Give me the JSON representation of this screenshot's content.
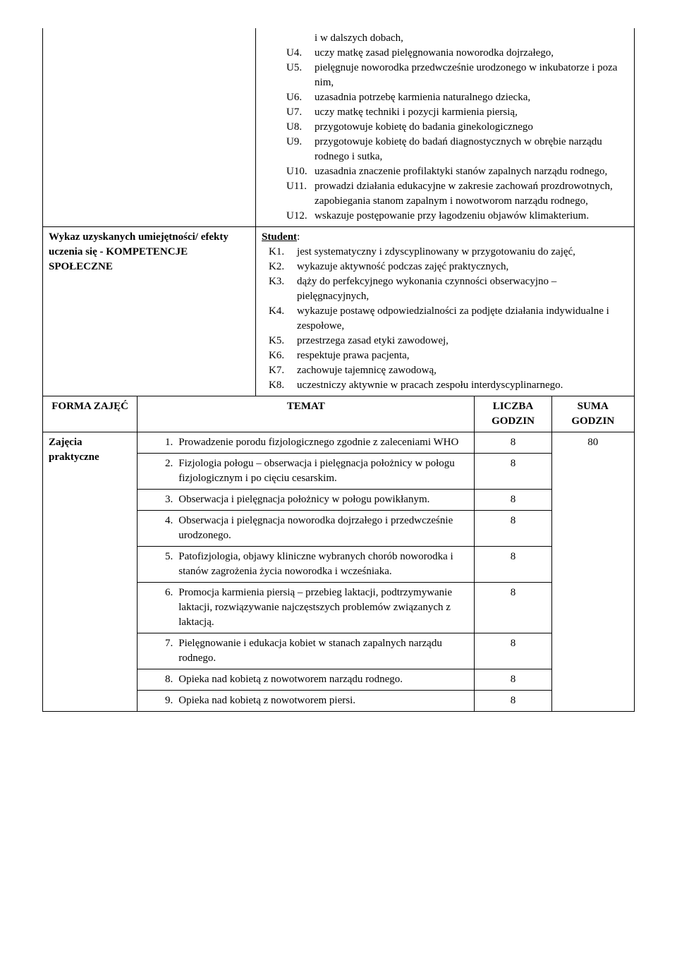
{
  "row1": {
    "label": "",
    "cont": "i w dalszych dobach,",
    "items": [
      {
        "code": "U4.",
        "text": "uczy matkę zasad pielęgnowania noworodka dojrzałego,"
      },
      {
        "code": "U5.",
        "text": "pielęgnuje noworodka przedwcześnie urodzonego w inkubatorze i poza nim,"
      },
      {
        "code": "U6.",
        "text": "uzasadnia potrzebę karmienia naturalnego dziecka,"
      },
      {
        "code": "U7.",
        "text": "uczy matkę techniki i pozycji karmienia piersią,"
      },
      {
        "code": "U8.",
        "text": "przygotowuje  kobietę do badania ginekologicznego"
      },
      {
        "code": "U9.",
        "text": "przygotowuje kobietę do badań diagnostycznych w obrębie narządu rodnego i sutka,"
      },
      {
        "code": "U10.",
        "text": "uzasadnia znaczenie profilaktyki stanów zapalnych narządu rodnego,"
      },
      {
        "code": "U11.",
        "text": "prowadzi działania edukacyjne w zakresie zachowań prozdrowotnych, zapobiegania stanom zapalnym i nowotworom narządu rodnego,"
      },
      {
        "code": "U12.",
        "text": "wskazuje  postępowanie przy łagodzeniu objawów klimakterium."
      }
    ]
  },
  "row2": {
    "label": "Wykaz uzyskanych umiejętności/ efekty uczenia się - KOMPETENCJE SPOŁECZNE",
    "heading": "Student",
    "colon": ":",
    "items": [
      {
        "code": "K1.",
        "text": "jest systematyczny i zdyscyplinowany w przygotowaniu do zajęć,"
      },
      {
        "code": "K2.",
        "text": "wykazuje aktywność podczas zajęć praktycznych,"
      },
      {
        "code": "K3.",
        "text": "dąży do perfekcyjnego wykonania czynności obserwacyjno – pielęgnacyjnych,"
      },
      {
        "code": "K4.",
        "text": "wykazuje postawę odpowiedzialności za podjęte działania indywidualne i zespołowe,"
      },
      {
        "code": "K5.",
        "text": "przestrzega zasad etyki zawodowej,"
      },
      {
        "code": "K6.",
        "text": "respektuje prawa   pacjenta,"
      },
      {
        "code": "K7.",
        "text": "zachowuje tajemnicę zawodową,"
      },
      {
        "code": "K8.",
        "text": "uczestniczy aktywnie w  pracach zespołu interdyscyplinarnego."
      }
    ]
  },
  "headers": {
    "forma": "FORMA ZAJĘĆ",
    "temat": "TEMAT",
    "liczba": "LICZBA GODZIN",
    "suma": "SUMA GODZIN"
  },
  "form_label": "Zajęcia praktyczne",
  "suma_value": "80",
  "topics": [
    {
      "num": "1.",
      "text": "Prowadzenie porodu fizjologicznego zgodnie z zaleceniami WHO",
      "hours": "8"
    },
    {
      "num": "2.",
      "text": "Fizjologia połogu – obserwacja i pielęgnacja położnicy w połogu fizjologicznym i po cięciu cesarskim.",
      "hours": "8"
    },
    {
      "num": "3.",
      "text": " Obserwacja i pielęgnacja położnicy w połogu powikłanym.",
      "hours": "8"
    },
    {
      "num": "4.",
      "text": "Obserwacja i pielęgnacja noworodka dojrzałego i przedwcześnie urodzonego.",
      "hours": "8"
    },
    {
      "num": "5.",
      "text": "Patofizjologia, objawy kliniczne wybranych chorób noworodka i stanów zagrożenia życia noworodka i wcześniaka.",
      "hours": "8"
    },
    {
      "num": "6.",
      "text": "Promocja karmienia piersią – przebieg laktacji, podtrzymywanie laktacji, rozwiązywanie najczęstszych problemów związanych z laktacją.",
      "hours": "8"
    },
    {
      "num": "7.",
      "text": "Pielęgnowanie i edukacja  kobiet w stanach zapalnych narządu rodnego.",
      "hours": "8"
    },
    {
      "num": "8.",
      "text": "Opieka nad kobietą z nowotworem narządu rodnego.",
      "hours": "8"
    },
    {
      "num": "9.",
      "text": "Opieka nad kobietą z nowotworem   piersi.",
      "hours": "8"
    }
  ]
}
